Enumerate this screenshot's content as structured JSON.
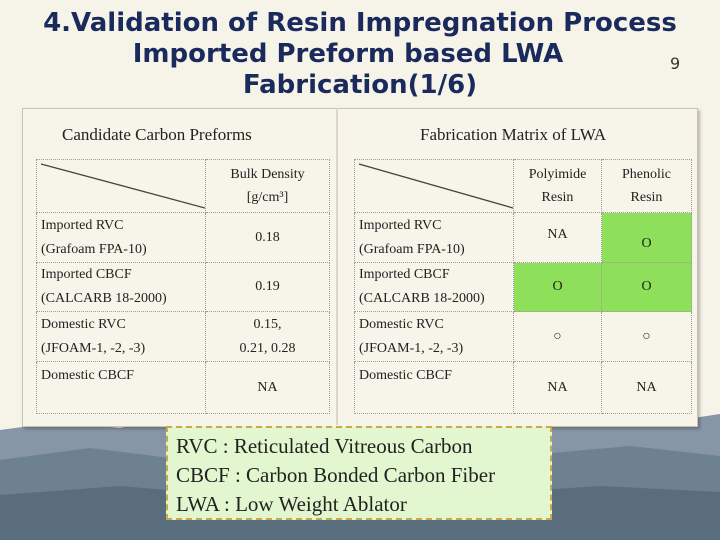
{
  "slide": {
    "title_line1": "4.Validation of Resin Impregnation Process",
    "title_line2": "Imported Preform based LWA",
    "title_line3": "Fabrication(1/6)",
    "page_number": "9"
  },
  "left_section": {
    "heading": "Candidate Carbon Preforms",
    "column_header_line1": "Bulk Density",
    "column_header_line2": "[g/cm³]",
    "rows": [
      {
        "name_line1": "Imported RVC",
        "name_line2": "(Grafoam FPA-10)",
        "value_line1": "0.18",
        "value_line2": ""
      },
      {
        "name_line1": "Imported CBCF",
        "name_line2": "(CALCARB 18-2000)",
        "value_line1": "0.19",
        "value_line2": ""
      },
      {
        "name_line1": "Domestic RVC",
        "name_line2": "(JFOAM-1, -2, -3)",
        "value_line1": "0.15,",
        "value_line2": "0.21, 0.28"
      },
      {
        "name_line1": "Domestic CBCF",
        "name_line2": "",
        "value_line1": "NA",
        "value_line2": ""
      }
    ]
  },
  "right_section": {
    "heading": "Fabrication Matrix of LWA",
    "col1_header_line1": "Polyimide",
    "col1_header_line2": "Resin",
    "col2_header_line1": "Phenolic",
    "col2_header_line2": "Resin",
    "rows": [
      {
        "name_line1": "Imported RVC",
        "name_line2": "(Grafoam FPA-10)",
        "polyimide": "NA",
        "phenolic": "O"
      },
      {
        "name_line1": "Imported CBCF",
        "name_line2": "(CALCARB 18-2000)",
        "polyimide": "O",
        "phenolic": "O"
      },
      {
        "name_line1": "Domestic RVC",
        "name_line2": "(JFOAM-1, -2, -3)",
        "polyimide": "○",
        "phenolic": "○"
      },
      {
        "name_line1": "Domestic CBCF",
        "name_line2": "",
        "polyimide": "NA",
        "phenolic": "NA"
      }
    ],
    "highlight_color": "#8ee05a"
  },
  "legend": {
    "line1": "RVC : Reticulated Vitreous Carbon",
    "line2": "CBCF : Carbon Bonded Carbon Fiber",
    "line3": "LWA : Low Weight Ablator"
  }
}
